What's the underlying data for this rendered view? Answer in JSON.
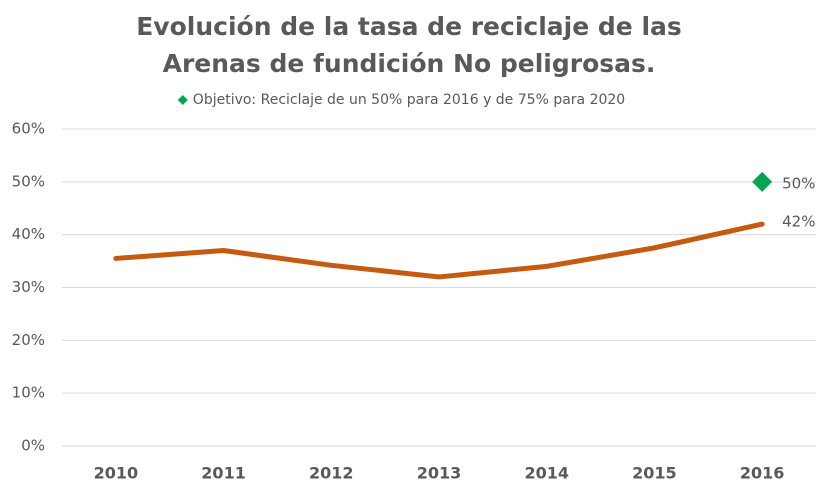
{
  "chart_data": {
    "type": "line",
    "title": "Evolución de la tasa de reciclaje de las Arenas de fundición No peligrosas.",
    "categories": [
      "2010",
      "2011",
      "2012",
      "2013",
      "2014",
      "2015",
      "2016"
    ],
    "series": [
      {
        "color": "#c55a11",
        "values": [
          35.5,
          37,
          34.2,
          32,
          34,
          37.5,
          42
        ],
        "value_labels": [
          null,
          null,
          null,
          null,
          null,
          null,
          "42%"
        ]
      },
      {
        "name": "Objetivo: Reciclaje de un 50% para 2016 y de 75% para 2020",
        "color": "#00a650",
        "marker": "diamond",
        "values": [
          null,
          null,
          null,
          null,
          null,
          null,
          50
        ],
        "value_labels": [
          null,
          null,
          null,
          null,
          null,
          null,
          "50%"
        ]
      }
    ],
    "ylim": [
      0,
      60
    ],
    "yticks": [
      {
        "value": 0,
        "label": "0%"
      },
      {
        "value": 10,
        "label": "10%"
      },
      {
        "value": 20,
        "label": "20%"
      },
      {
        "value": 30,
        "label": "30%"
      },
      {
        "value": 40,
        "label": "40%"
      },
      {
        "value": 50,
        "label": "50%"
      },
      {
        "value": 60,
        "label": "60%"
      }
    ],
    "grid": true,
    "legend": "top"
  }
}
